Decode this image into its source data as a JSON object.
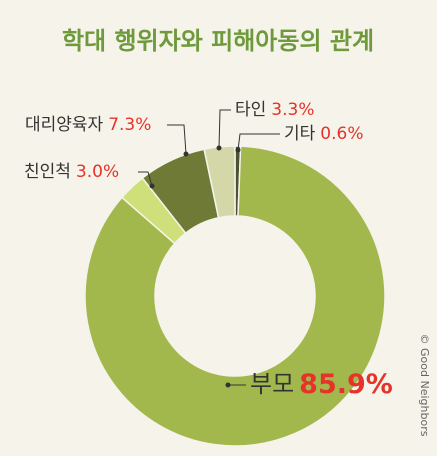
{
  "chart_data": {
    "type": "donut",
    "title": "학대 행위자와 피해아동의 관계",
    "categories": [
      "기타",
      "부모",
      "친인척",
      "대리양육자",
      "타인"
    ],
    "values": [
      0.6,
      85.9,
      3.0,
      7.3,
      3.3
    ],
    "value_labels": [
      "0.6%",
      "85.9%",
      "3.0%",
      "7.3%",
      "3.3%"
    ],
    "colors": [
      "#4b5331",
      "#a3b84c",
      "#cfe07a",
      "#6e7a35",
      "#d4d8a9"
    ],
    "credit": "© Good Neighbors"
  }
}
